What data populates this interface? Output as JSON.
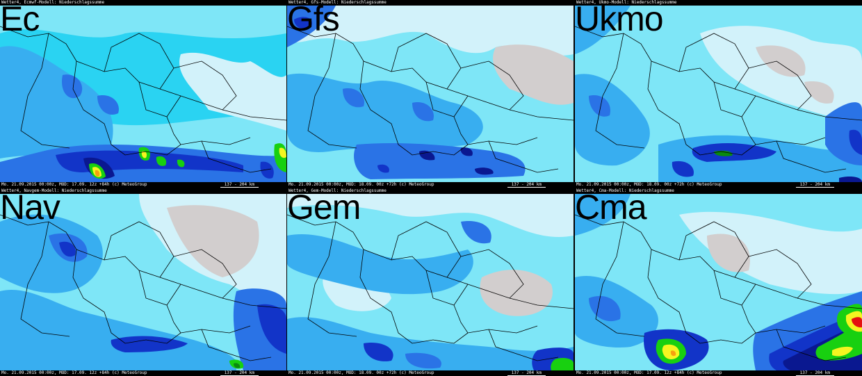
{
  "palette": {
    "bg": "#d2f2fa",
    "light": "#7ee6f7",
    "cyan": "#2ad3f2",
    "sky": "#38aef0",
    "blue": "#2a73e6",
    "deep": "#1234c8",
    "navy": "#0a1890",
    "green": "#18d010",
    "darkgreen": "#0a8a10",
    "yellow": "#f5f520",
    "orange": "#f5a010",
    "red": "#e41010",
    "dry": "#d2cece",
    "border": "#000000"
  },
  "panels": [
    {
      "label": "Ec",
      "header": "Wetter4, Ecmwf-Modell: Niederschlagssumme",
      "footer": "Mo. 21.09.2015 00:00z, MOD: 17.09. 12z +84h (c) MeteoGroup",
      "scale": "137 - 204 km"
    },
    {
      "label": "Gfs",
      "header": "Wetter4, Gfs-Modell: Niederschlagssumme",
      "footer": "Mo. 21.09.2015 00:00z, MOD: 18.09. 00z +72h (c) MeteoGroup",
      "scale": "137 - 204 km"
    },
    {
      "label": "Ukmo",
      "header": "Wetter4, Ukmo-Modell: Niederschlagssumme",
      "footer": "Mo. 21.09.2015 00:00z, MOD: 18.09. 00z +72h (c) MeteoGroup",
      "scale": "137 - 204 km"
    },
    {
      "label": "Nav",
      "header": "Wetter4, Navgem-Modell: Niederschlagssumme",
      "footer": "Mo. 21.09.2015 00:00z, MOD: 17.09. 12z +84h (c) MeteoGroup",
      "scale": "137 - 204 km"
    },
    {
      "label": "Gem",
      "header": "Wetter4, Gem-Modell: Niederschlagssumme",
      "footer": "Mo. 21.09.2015 00:00z, MOD: 18.09. 00z +72h (c) MeteoGroup",
      "scale": "137 - 204 km"
    },
    {
      "label": "Cma",
      "header": "Wetter4, Cma-Modell: Niederschlagssumme",
      "footer": "Mo. 21.09.2015 00:00z, MOD: 17.09. 12z +84h (c) MeteoGroup",
      "scale": "137 - 204 km"
    }
  ]
}
